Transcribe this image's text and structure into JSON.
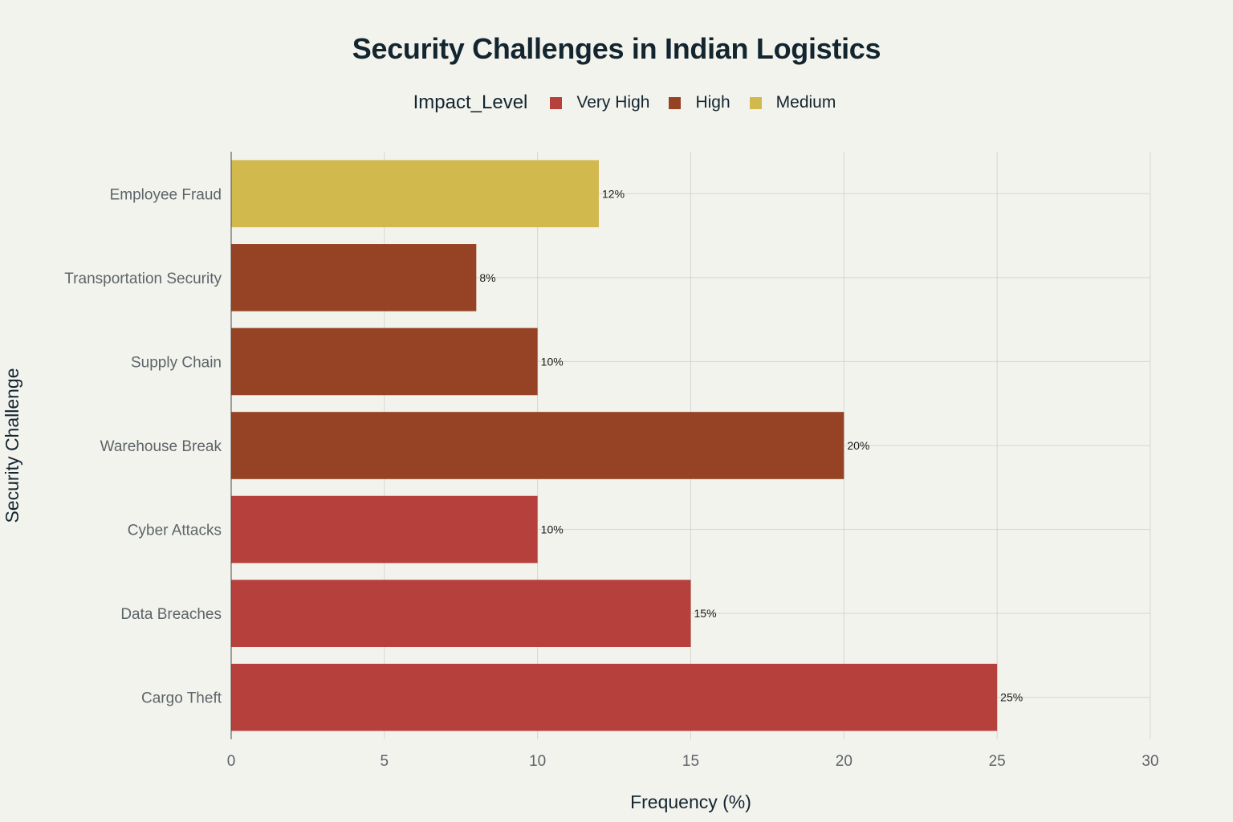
{
  "chart_data": {
    "type": "bar",
    "orientation": "horizontal",
    "title": "Security Challenges in Indian Logistics",
    "xlabel": "Frequency (%)",
    "ylabel": "Security Challenge",
    "xlim": [
      0,
      30
    ],
    "xticks": [
      0,
      5,
      10,
      15,
      20,
      25,
      30
    ],
    "grid": true,
    "legend": {
      "title": "Impact_Level",
      "placement": "top-center",
      "entries": [
        {
          "name": "Very High",
          "color": "#b5403c"
        },
        {
          "name": "High",
          "color": "#954324"
        },
        {
          "name": "Medium",
          "color": "#d2b94e"
        }
      ]
    },
    "categories": [
      "Employee Fraud",
      "Transportation Security",
      "Supply Chain",
      "Warehouse Break",
      "Cyber Attacks",
      "Data Breaches",
      "Cargo Theft"
    ],
    "values": [
      12,
      8,
      10,
      20,
      10,
      15,
      25
    ],
    "data_labels": [
      "12%",
      "8%",
      "10%",
      "20%",
      "10%",
      "15%",
      "25%"
    ],
    "impact_levels": [
      "Medium",
      "High",
      "High",
      "High",
      "Very High",
      "Very High",
      "Very High"
    ]
  }
}
